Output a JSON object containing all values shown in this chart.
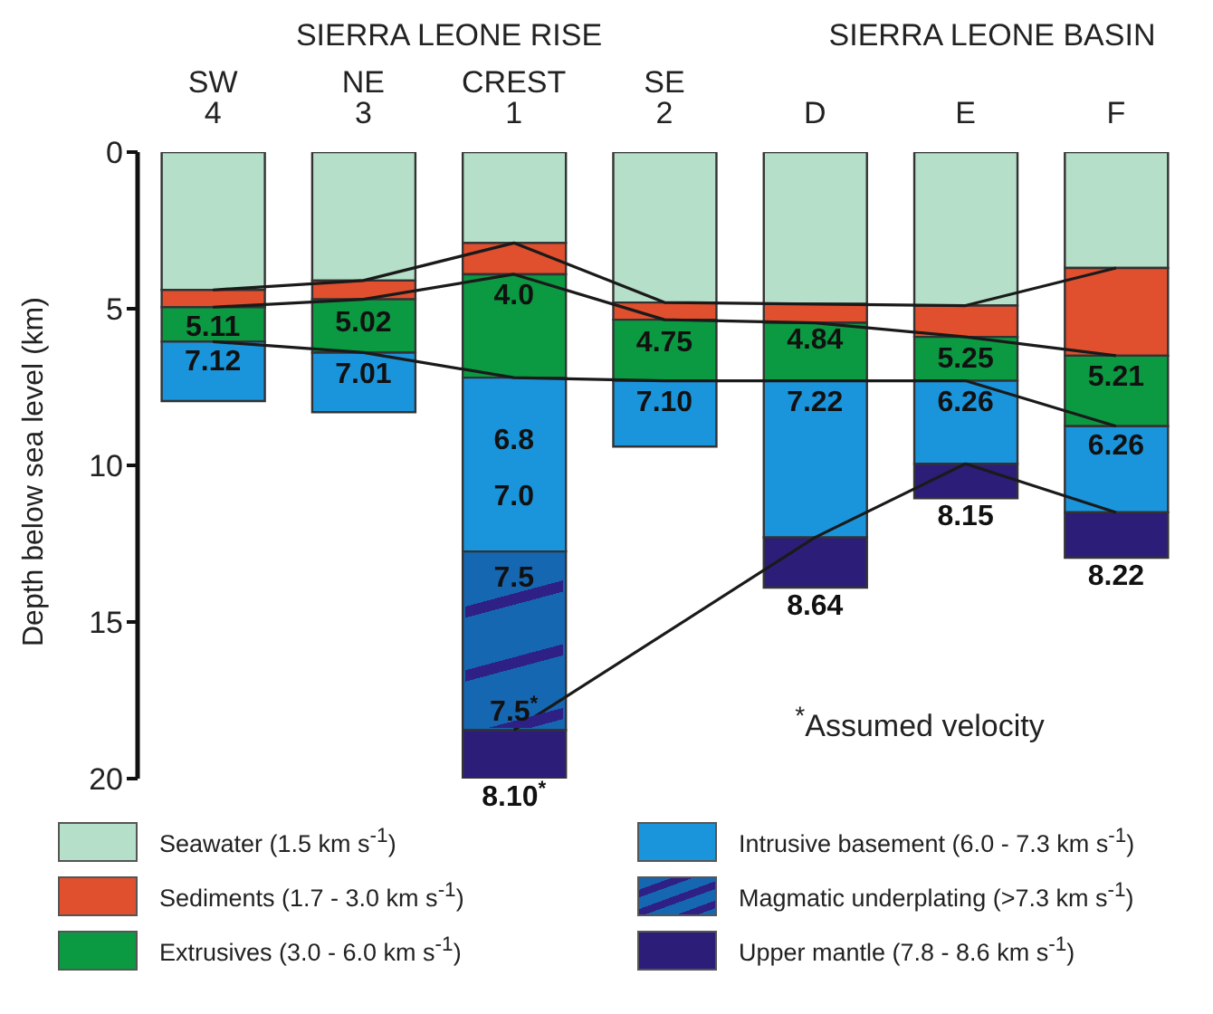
{
  "chart_data": {
    "type": "bar",
    "stacked": true,
    "ylabel": "Depth below sea level (km)",
    "categories": [
      "SW 4",
      "NE 3",
      "CREST 1",
      "SE 2",
      "D",
      "E",
      "F"
    ],
    "ylim": [
      20,
      0
    ],
    "yticks": [
      0,
      5,
      10,
      15,
      20
    ],
    "grid": false,
    "legend": "bottom",
    "series": [
      {
        "name": "Seawater (1.5 km s$^{-1}$)",
        "color": "#b5dfc8",
        "values": [
          4.4,
          4.1,
          2.9,
          4.8,
          4.85,
          4.9,
          3.7
        ]
      },
      {
        "name": "Sediments (1.7 - 3.0 km s$^{-1}$)",
        "color": "#e0502e",
        "values": [
          0.55,
          0.6,
          1.0,
          0.55,
          0.6,
          1.0,
          2.8
        ]
      },
      {
        "name": "Extrusives (3.0 - 6.0 km s$^{-1}$)",
        "color": "#0b9a42",
        "values": [
          1.1,
          1.7,
          3.3,
          1.95,
          1.85,
          1.4,
          2.25
        ]
      },
      {
        "name": "Intrusive basement (6.0 - 7.3 km s$^{-1}$)",
        "color": "#1a95dc",
        "values": [
          1.9,
          1.9,
          5.55,
          2.1,
          5.0,
          2.65,
          2.75
        ]
      },
      {
        "name": "Magmatic underplating (>7.3 km s$^{-1}$)",
        "color": "#1667b2",
        "values": [
          null,
          null,
          5.7,
          null,
          null,
          null,
          null
        ]
      },
      {
        "name": "Upper mantle (7.8 - 8.6 km s$^{-1}$)",
        "color": "#2c1e78",
        "values": [
          null,
          null,
          1.55,
          null,
          1.6,
          1.1,
          1.45
        ]
      },
      {
        "type": "line",
        "color": "#1a1a1a",
        "values": [
          4.4,
          4.1,
          2.9,
          4.8,
          4.85,
          4.9,
          3.7
        ]
      },
      {
        "type": "line",
        "color": "#1a1a1a",
        "values": [
          4.95,
          4.7,
          3.9,
          5.35,
          5.45,
          5.9,
          6.5
        ]
      },
      {
        "type": "line",
        "color": "#1a1a1a",
        "values": [
          6.05,
          6.4,
          7.2,
          7.3,
          7.3,
          7.3,
          8.75
        ]
      },
      {
        "type": "line",
        "color": "#1a1a1a",
        "values": [
          null,
          null,
          18.45,
          null,
          12.3,
          9.95,
          11.5
        ]
      }
    ],
    "annotations": [
      "SIERRA LEONE RISE",
      "SIERRA LEONE BASIN",
      "$^{*}$Assumed velocity",
      {
        "text": "5.11",
        "x": "SW 4",
        "y": 5.0
      },
      {
        "text": "7.12",
        "x": "SW 4",
        "y": 6.1
      },
      {
        "text": "5.02",
        "x": "NE 3",
        "y": 4.85
      },
      {
        "text": "7.01",
        "x": "NE 3",
        "y": 6.5
      },
      {
        "text": "4.0",
        "x": "CREST 1",
        "y": 4.0
      },
      "6.8",
      "7.0",
      "7.5$^{*}$",
      {
        "text": "7.5",
        "x": "CREST 1",
        "y": 13.0
      },
      {
        "text": "8.10$^{*}$",
        "x": "CREST 1",
        "y": 20
      },
      {
        "text": "4.75",
        "x": "SE 2",
        "y": 5.5
      },
      {
        "text": "7.10",
        "x": "SE 2",
        "y": 7.4
      },
      {
        "text": "4.84",
        "x": "D",
        "y": 5.4
      },
      {
        "text": "7.22",
        "x": "D",
        "y": 7.4
      },
      {
        "text": "8.64",
        "x": "D",
        "y": 13.9
      },
      {
        "text": "5.25",
        "x": "E",
        "y": 6.0
      },
      {
        "text": "6.26",
        "x": "E",
        "y": 7.4
      },
      {
        "text": "8.15",
        "x": "E",
        "y": 11.05
      },
      {
        "text": "5.21",
        "x": "F",
        "y": 6.6
      },
      {
        "text": "6.26",
        "x": "F",
        "y": 8.8
      },
      {
        "text": "8.22",
        "x": "F",
        "y": 12.95
      }
    ]
  }
}
